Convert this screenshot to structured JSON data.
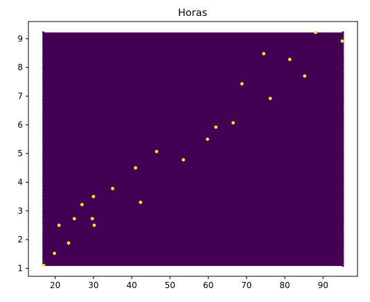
{
  "chart_data": {
    "type": "heatmap",
    "subtype": "hexbin",
    "title": "Horas",
    "xlabel": "",
    "ylabel": "",
    "xlim": [
      16.9,
      95.2
    ],
    "ylim": [
      1.08,
      9.22
    ],
    "xlim_view": [
      13.0,
      99.0
    ],
    "ylim_view": [
      0.72,
      9.6
    ],
    "xticks": [
      20,
      30,
      40,
      50,
      60,
      70,
      80,
      90
    ],
    "yticks": [
      1,
      2,
      3,
      4,
      5,
      6,
      7,
      8,
      9
    ],
    "background_color": "#440154",
    "highlight_color": "#fde725",
    "colormap": "viridis",
    "grid": false,
    "points": [
      {
        "x": 17.0,
        "y": 1.1
      },
      {
        "x": 19.8,
        "y": 1.52
      },
      {
        "x": 23.5,
        "y": 1.88
      },
      {
        "x": 21.0,
        "y": 2.5
      },
      {
        "x": 30.2,
        "y": 2.5
      },
      {
        "x": 25.0,
        "y": 2.73
      },
      {
        "x": 29.7,
        "y": 2.73
      },
      {
        "x": 27.0,
        "y": 3.22
      },
      {
        "x": 42.3,
        "y": 3.3
      },
      {
        "x": 30.0,
        "y": 3.5
      },
      {
        "x": 35.0,
        "y": 3.78
      },
      {
        "x": 41.0,
        "y": 4.5
      },
      {
        "x": 53.5,
        "y": 4.78
      },
      {
        "x": 46.5,
        "y": 5.07
      },
      {
        "x": 59.8,
        "y": 5.5
      },
      {
        "x": 62.0,
        "y": 5.92
      },
      {
        "x": 66.5,
        "y": 6.07
      },
      {
        "x": 76.2,
        "y": 6.92
      },
      {
        "x": 68.8,
        "y": 7.43
      },
      {
        "x": 85.2,
        "y": 7.7
      },
      {
        "x": 81.3,
        "y": 8.28
      },
      {
        "x": 74.5,
        "y": 8.48
      },
      {
        "x": 88.0,
        "y": 9.22
      },
      {
        "x": 95.0,
        "y": 8.92
      }
    ]
  }
}
